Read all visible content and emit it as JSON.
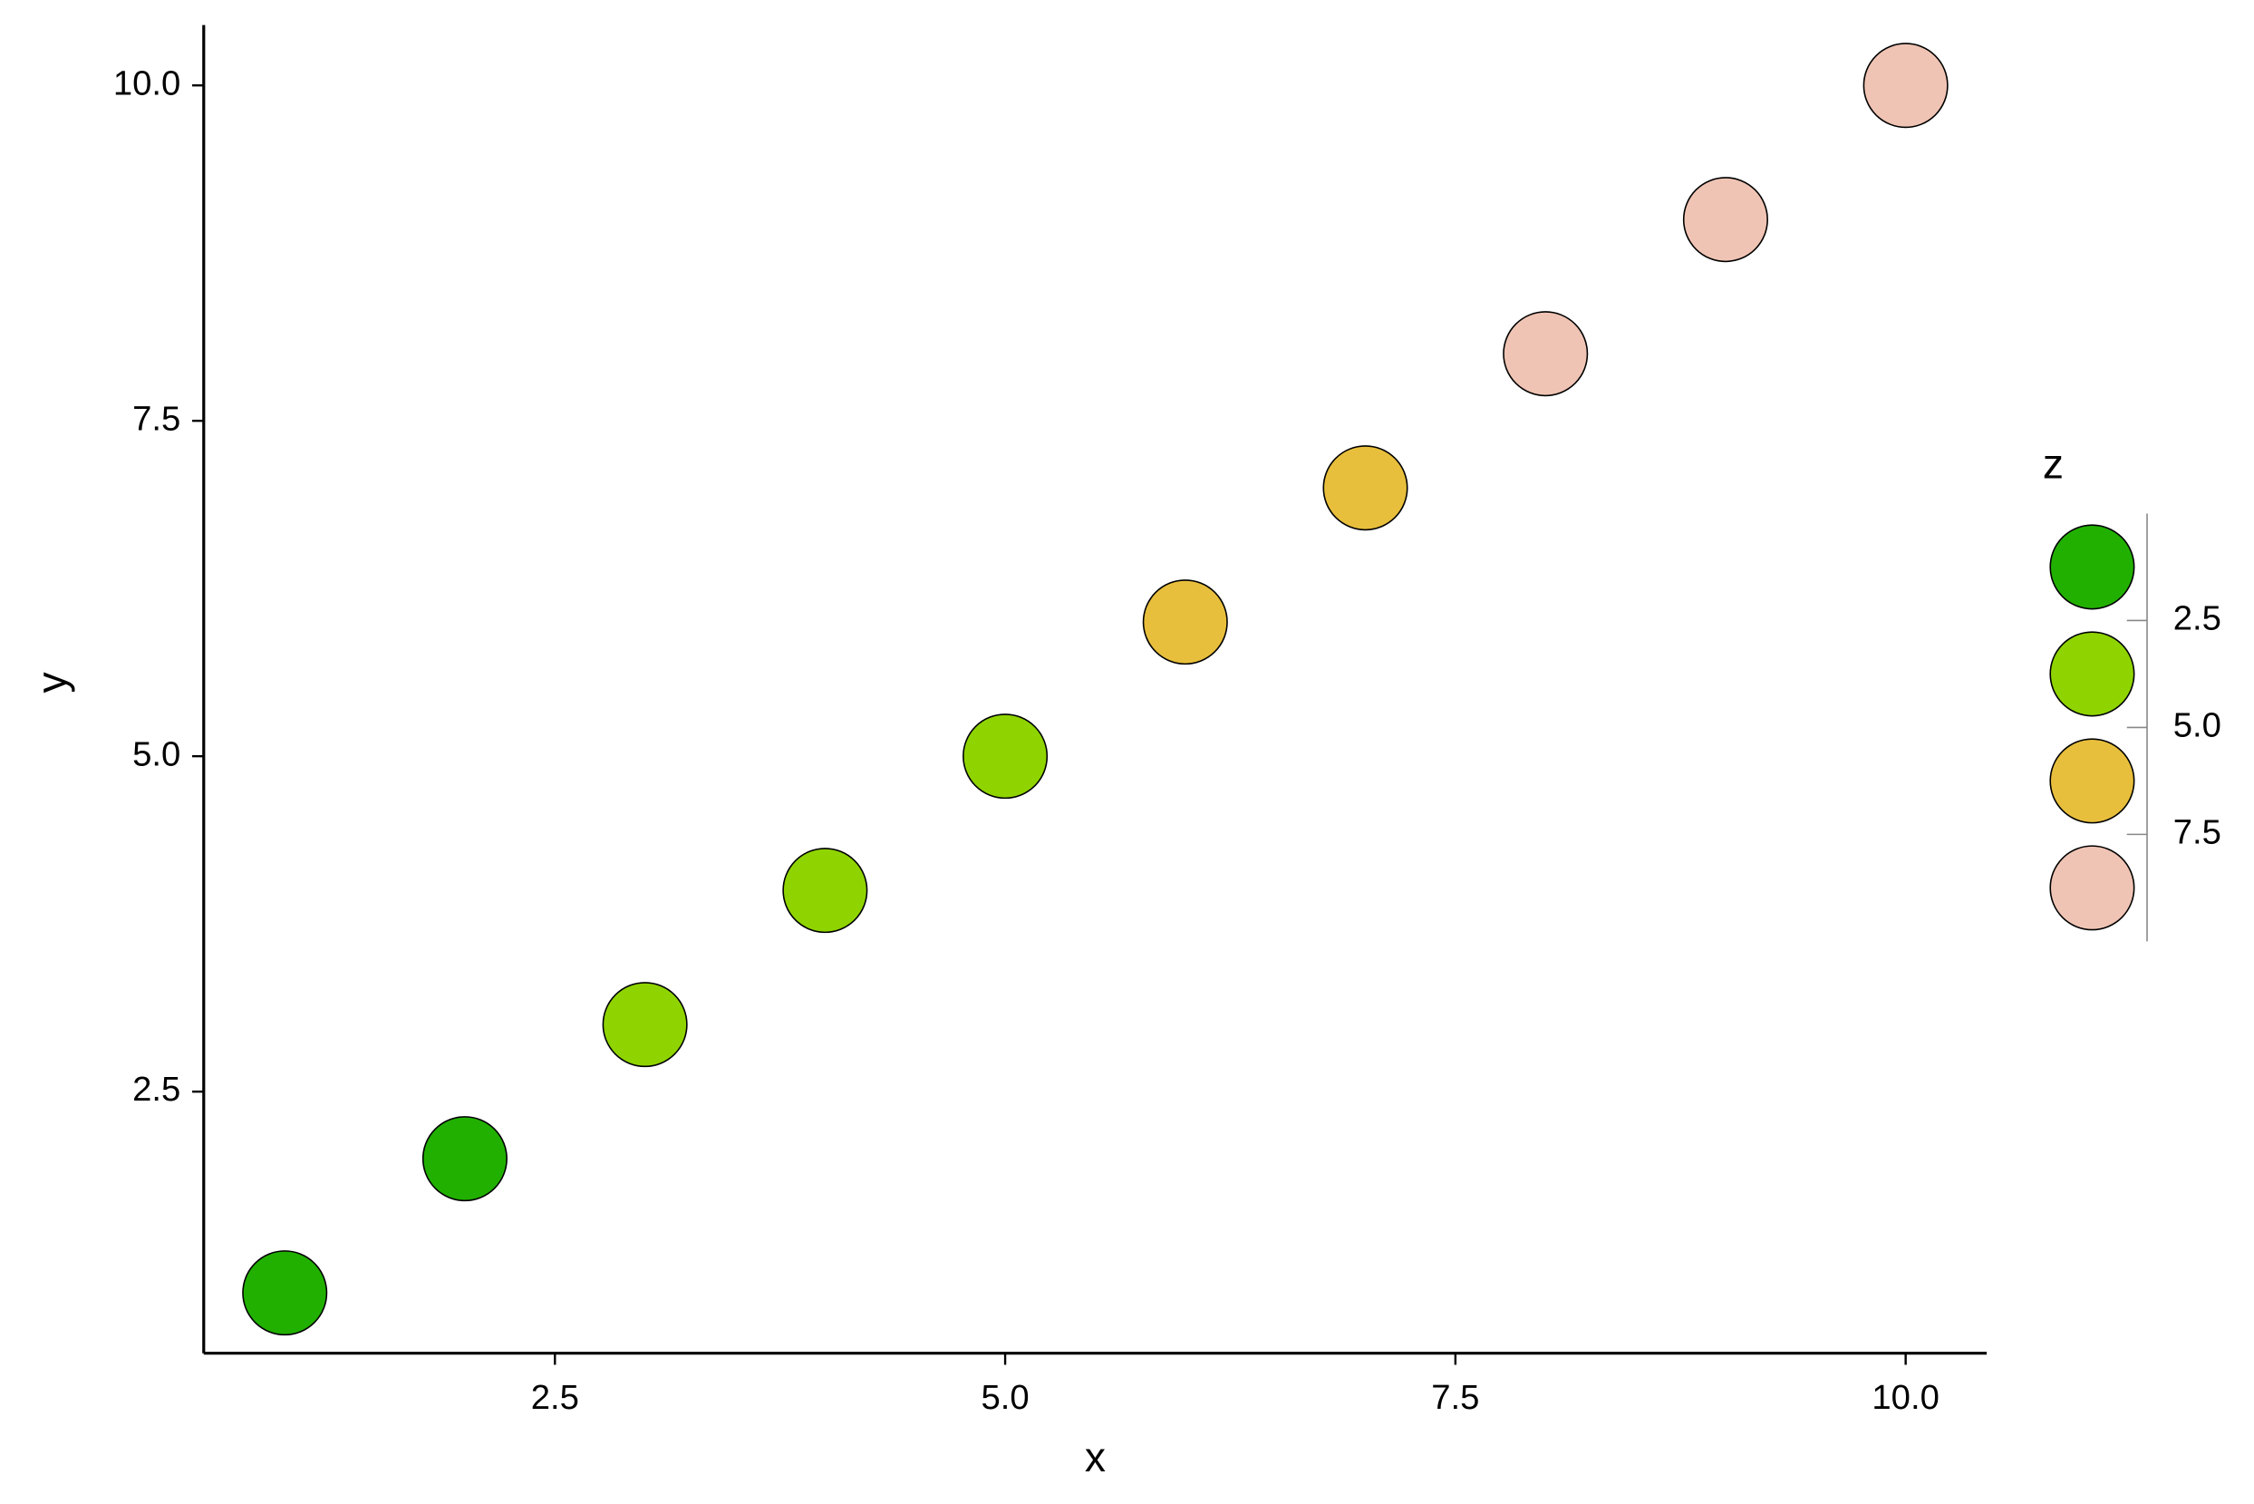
{
  "chart_data": {
    "type": "scatter",
    "x_label": "x",
    "y_label": "y",
    "x": [
      1,
      2,
      3,
      4,
      5,
      6,
      7,
      8,
      9,
      10
    ],
    "y": [
      1,
      2,
      3,
      4,
      5,
      6,
      7,
      8,
      9,
      10
    ],
    "z": [
      1,
      2,
      3,
      4,
      5,
      6,
      7,
      8,
      9,
      10
    ],
    "colors": [
      "#22b000",
      "#22b000",
      "#8fd400",
      "#8fd400",
      "#8fd400",
      "#e8bf3c",
      "#e8bf3c",
      "#f0c4b4",
      "#f0c4b4",
      "#f0c4b4"
    ],
    "xlim": [
      0.55,
      10.45
    ],
    "ylim": [
      0.55,
      10.45
    ],
    "xticks": [
      2.5,
      {
        "value": 5,
        "label": "5.0"
      },
      7.5,
      {
        "value": 10,
        "label": "10.0"
      }
    ],
    "yticks": [
      2.5,
      {
        "value": 5,
        "label": "5.0"
      },
      7.5,
      {
        "value": 10,
        "label": "10.0"
      }
    ],
    "grid": false,
    "legend": {
      "title": "z",
      "colors": [
        "#22b000",
        "#8fd400",
        "#e8bf3c",
        "#f0c4b4"
      ],
      "ticks": [
        2.5,
        {
          "value": 5,
          "label": "5.0"
        },
        7.5
      ]
    }
  }
}
